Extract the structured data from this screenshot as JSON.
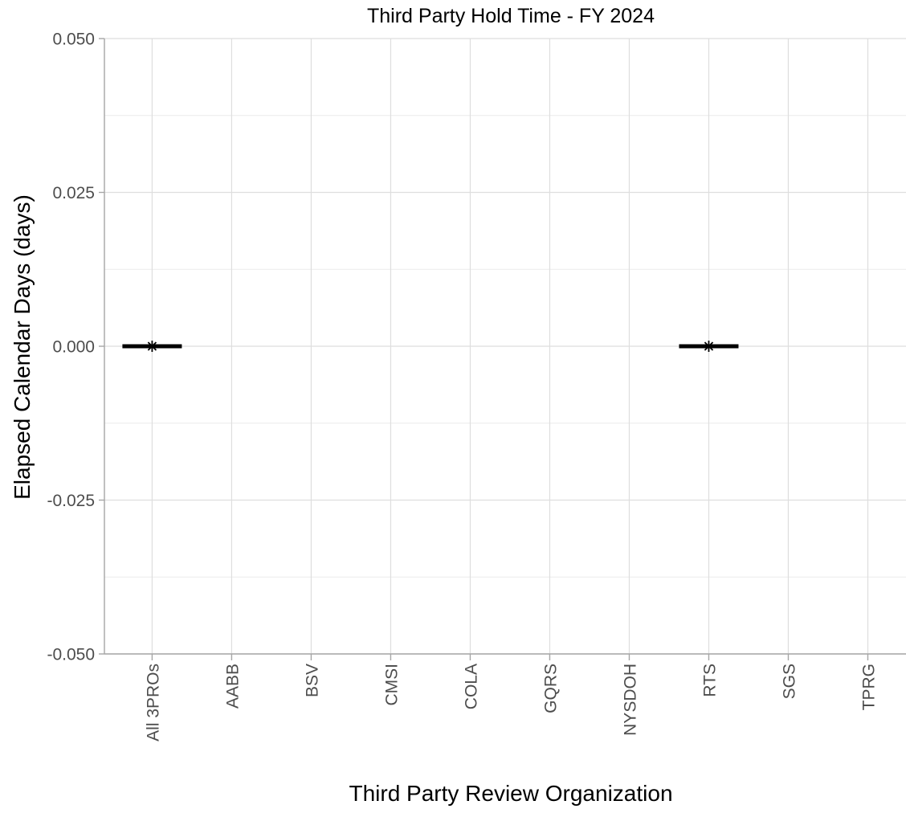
{
  "chart_data": {
    "type": "box",
    "title": "Third Party Hold Time - FY 2024",
    "xlabel": "Third Party Review Organization",
    "ylabel": "Elapsed Calendar Days (days)",
    "ylim": [
      -0.05,
      0.05
    ],
    "y_ticks": [
      -0.05,
      -0.025,
      0.0,
      0.025,
      0.05
    ],
    "y_tick_labels": [
      "-0.050",
      "-0.025",
      "0.000",
      "0.025",
      "0.050"
    ],
    "grid": true,
    "categories": [
      "All 3PROs",
      "AABB",
      "BSV",
      "CMSI",
      "COLA",
      "GQRS",
      "NYSDOH",
      "RTS",
      "SGS",
      "TPRG"
    ],
    "boxes": [
      {
        "category": "All 3PROs",
        "median": 0.0,
        "mean": 0.0
      },
      {
        "category": "RTS",
        "median": 0.0,
        "mean": 0.0
      }
    ]
  }
}
